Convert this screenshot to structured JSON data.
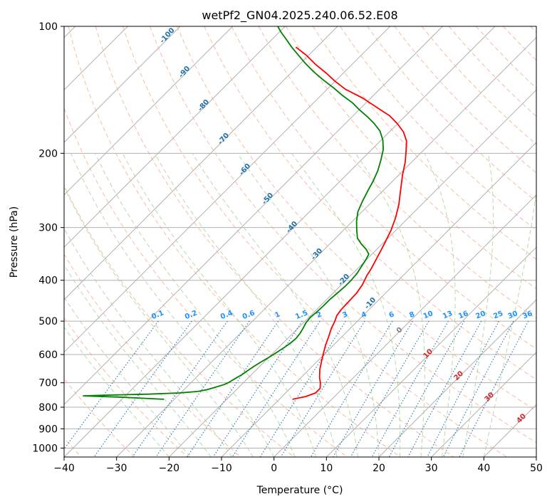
{
  "chart_data": {
    "type": "line",
    "title": "wetPf2_GN04.2025.240.06.52.E08",
    "xlabel": "Temperature (°C)",
    "ylabel": "Pressure (hPa)",
    "xlim": [
      -40,
      50
    ],
    "ylim": [
      1050,
      100
    ],
    "y_scale": "log",
    "grid": true,
    "x_ticks": [
      -40,
      -30,
      -20,
      -10,
      0,
      10,
      20,
      30,
      40,
      50
    ],
    "y_ticks": [
      100,
      200,
      300,
      400,
      500,
      600,
      700,
      800,
      900,
      1000
    ],
    "skew": true,
    "series": [
      {
        "color": "#ff0000",
        "points": [
          [
            -7.5,
            766
          ],
          [
            -5.5,
            755
          ],
          [
            -4.3,
            740
          ],
          [
            -4.3,
            722
          ],
          [
            -5.3,
            700
          ],
          [
            -6.5,
            680
          ],
          [
            -8.0,
            650
          ],
          [
            -9.3,
            620
          ],
          [
            -10.4,
            595
          ],
          [
            -11.5,
            570
          ],
          [
            -12.5,
            545
          ],
          [
            -13.6,
            520
          ],
          [
            -14.3,
            500
          ],
          [
            -15.0,
            485
          ],
          [
            -15.3,
            470
          ],
          [
            -15.4,
            450
          ],
          [
            -15.5,
            430
          ],
          [
            -16.0,
            410
          ],
          [
            -16.9,
            390
          ],
          [
            -17.4,
            375
          ],
          [
            -18.3,
            355
          ],
          [
            -19.5,
            330
          ],
          [
            -20.9,
            305
          ],
          [
            -22.4,
            285
          ],
          [
            -24.3,
            265
          ],
          [
            -26.7,
            245
          ],
          [
            -29.3,
            225
          ],
          [
            -31.2,
            210
          ],
          [
            -33.1,
            198
          ],
          [
            -35.0,
            187
          ],
          [
            -37.3,
            178
          ],
          [
            -40.1,
            170
          ],
          [
            -43.0,
            163
          ],
          [
            -46.9,
            156
          ],
          [
            -51.5,
            148
          ],
          [
            -56.5,
            141
          ],
          [
            -60.0,
            135
          ],
          [
            -63.3,
            129
          ],
          [
            -67.0,
            123
          ],
          [
            -70.5,
            117
          ],
          [
            -74.0,
            112
          ]
        ]
      },
      {
        "color": "#008000",
        "points": [
          [
            -32.0,
            766
          ],
          [
            -41.0,
            757
          ],
          [
            -48.0,
            752
          ],
          [
            -44.0,
            749
          ],
          [
            -36.0,
            745
          ],
          [
            -30.3,
            740
          ],
          [
            -27.0,
            734
          ],
          [
            -25.6,
            727
          ],
          [
            -24.4,
            717
          ],
          [
            -23.3,
            707
          ],
          [
            -22.8,
            698
          ],
          [
            -22.3,
            683
          ],
          [
            -21.8,
            669
          ],
          [
            -21.5,
            655
          ],
          [
            -21.1,
            640
          ],
          [
            -20.6,
            625
          ],
          [
            -20.0,
            610
          ],
          [
            -19.5,
            595
          ],
          [
            -19.0,
            580
          ],
          [
            -18.6,
            565
          ],
          [
            -18.4,
            550
          ],
          [
            -18.6,
            535
          ],
          [
            -19.0,
            520
          ],
          [
            -19.5,
            505
          ],
          [
            -19.7,
            490
          ],
          [
            -19.5,
            475
          ],
          [
            -19.4,
            460
          ],
          [
            -19.4,
            445
          ],
          [
            -19.2,
            430
          ],
          [
            -19.0,
            415
          ],
          [
            -19.0,
            400
          ],
          [
            -19.2,
            385
          ],
          [
            -19.7,
            370
          ],
          [
            -20.1,
            358
          ],
          [
            -20.6,
            347
          ],
          [
            -22.0,
            338
          ],
          [
            -24.0,
            328
          ],
          [
            -25.8,
            318
          ],
          [
            -27.4,
            305
          ],
          [
            -29.2,
            290
          ],
          [
            -30.8,
            275
          ],
          [
            -31.9,
            260
          ],
          [
            -32.9,
            245
          ],
          [
            -33.7,
            233
          ],
          [
            -34.8,
            220
          ],
          [
            -36.2,
            208
          ],
          [
            -37.8,
            196
          ],
          [
            -39.7,
            186
          ],
          [
            -42.0,
            177
          ],
          [
            -44.5,
            170
          ],
          [
            -47.0,
            164
          ],
          [
            -49.8,
            158
          ],
          [
            -52.5,
            152
          ],
          [
            -55.8,
            146
          ],
          [
            -59.0,
            140
          ],
          [
            -62.5,
            134
          ],
          [
            -66.0,
            128
          ],
          [
            -69.3,
            122
          ],
          [
            -72.0,
            117
          ],
          [
            -74.8,
            112
          ],
          [
            -77.5,
            107
          ],
          [
            -79.8,
            103
          ],
          [
            -81.4,
            100
          ]
        ]
      }
    ],
    "dry_adiabat_labels": [
      "-100",
      "-90",
      "-80",
      "-70",
      "-60",
      "-50",
      "-40",
      "-30",
      "-20",
      "-10"
    ],
    "mixing_ratio_labels": [
      "0.1",
      "0.2",
      "0.4",
      "0.6",
      "1",
      "1.5",
      "2",
      "3",
      "4",
      "6",
      "8",
      "10",
      "13",
      "16",
      "20",
      "25",
      "30",
      "36"
    ],
    "moist_adiabat_labels": [
      "0",
      "10",
      "20",
      "30",
      "40"
    ],
    "colors": {
      "temperature": "#ff0000",
      "dewpoint": "#008000",
      "isotherm": "#b0b0b0",
      "dry_adiabat": "#f4a582",
      "moist_adiabat": "#a6d096",
      "mixing_ratio": "#1f77b4",
      "mixing_ratio_label": "#1e90ff",
      "dry_label": "#1f6fa8",
      "moist_label": "#d62728"
    }
  }
}
